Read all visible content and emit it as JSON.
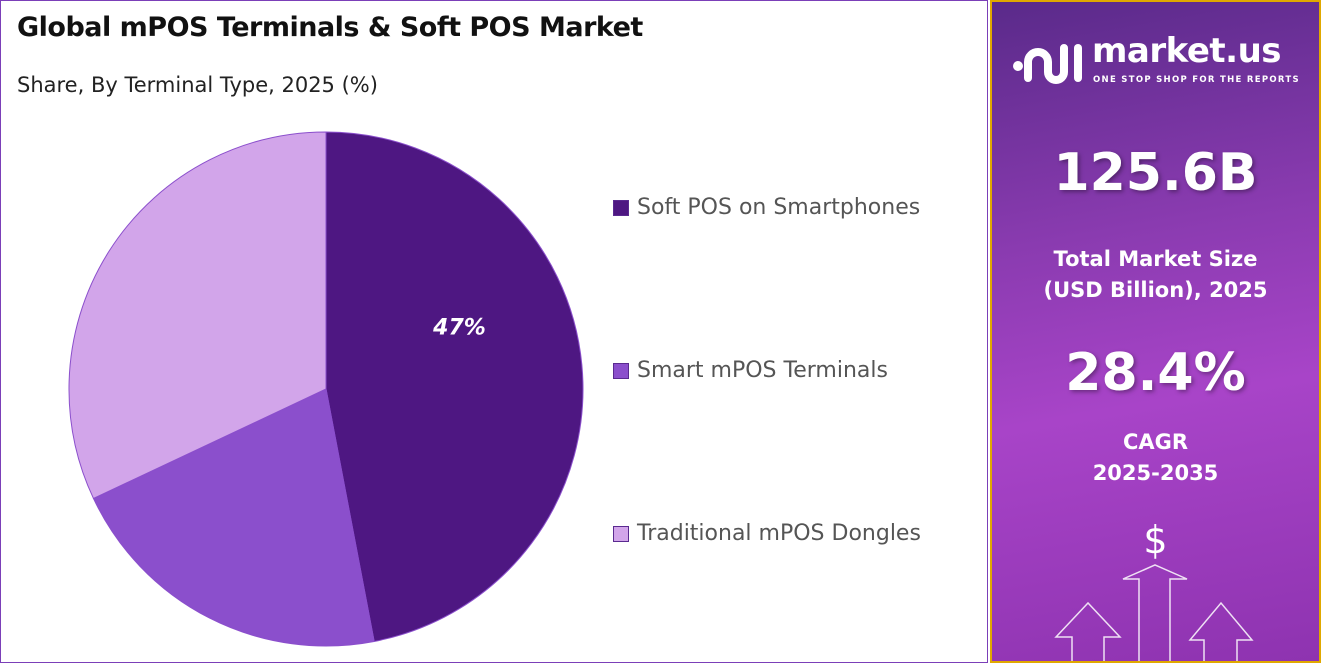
{
  "header": {
    "title": "Global mPOS Terminals & Soft POS Market",
    "subtitle": "Share, By Terminal Type, 2025 (%)"
  },
  "chart_data": {
    "type": "pie",
    "title": "Global mPOS Terminals & Soft POS Market",
    "subtitle": "Share, By Terminal Type, 2025 (%)",
    "categories": [
      "Soft POS on Smartphones",
      "Smart mPOS Terminals",
      "Traditional mPOS Dongles"
    ],
    "values": [
      47,
      21,
      32
    ],
    "data_labels": [
      "47%",
      "",
      ""
    ],
    "colors": [
      "#4e1782",
      "#8b4fcc",
      "#d2a5ea"
    ],
    "start_angle": "top, clockwise",
    "legend_position": "right"
  },
  "side_panel": {
    "brand": "market.us",
    "tagline": "ONE STOP SHOP FOR THE REPORTS",
    "market_size": "125.6B",
    "market_size_label_1": "Total Market Size",
    "market_size_label_2": "(USD Billion), 2025",
    "cagr": "28.4%",
    "cagr_label_1": "CAGR",
    "cagr_label_2": "2025-2035",
    "currency_symbol": "$",
    "border_color": "#e0a800"
  }
}
